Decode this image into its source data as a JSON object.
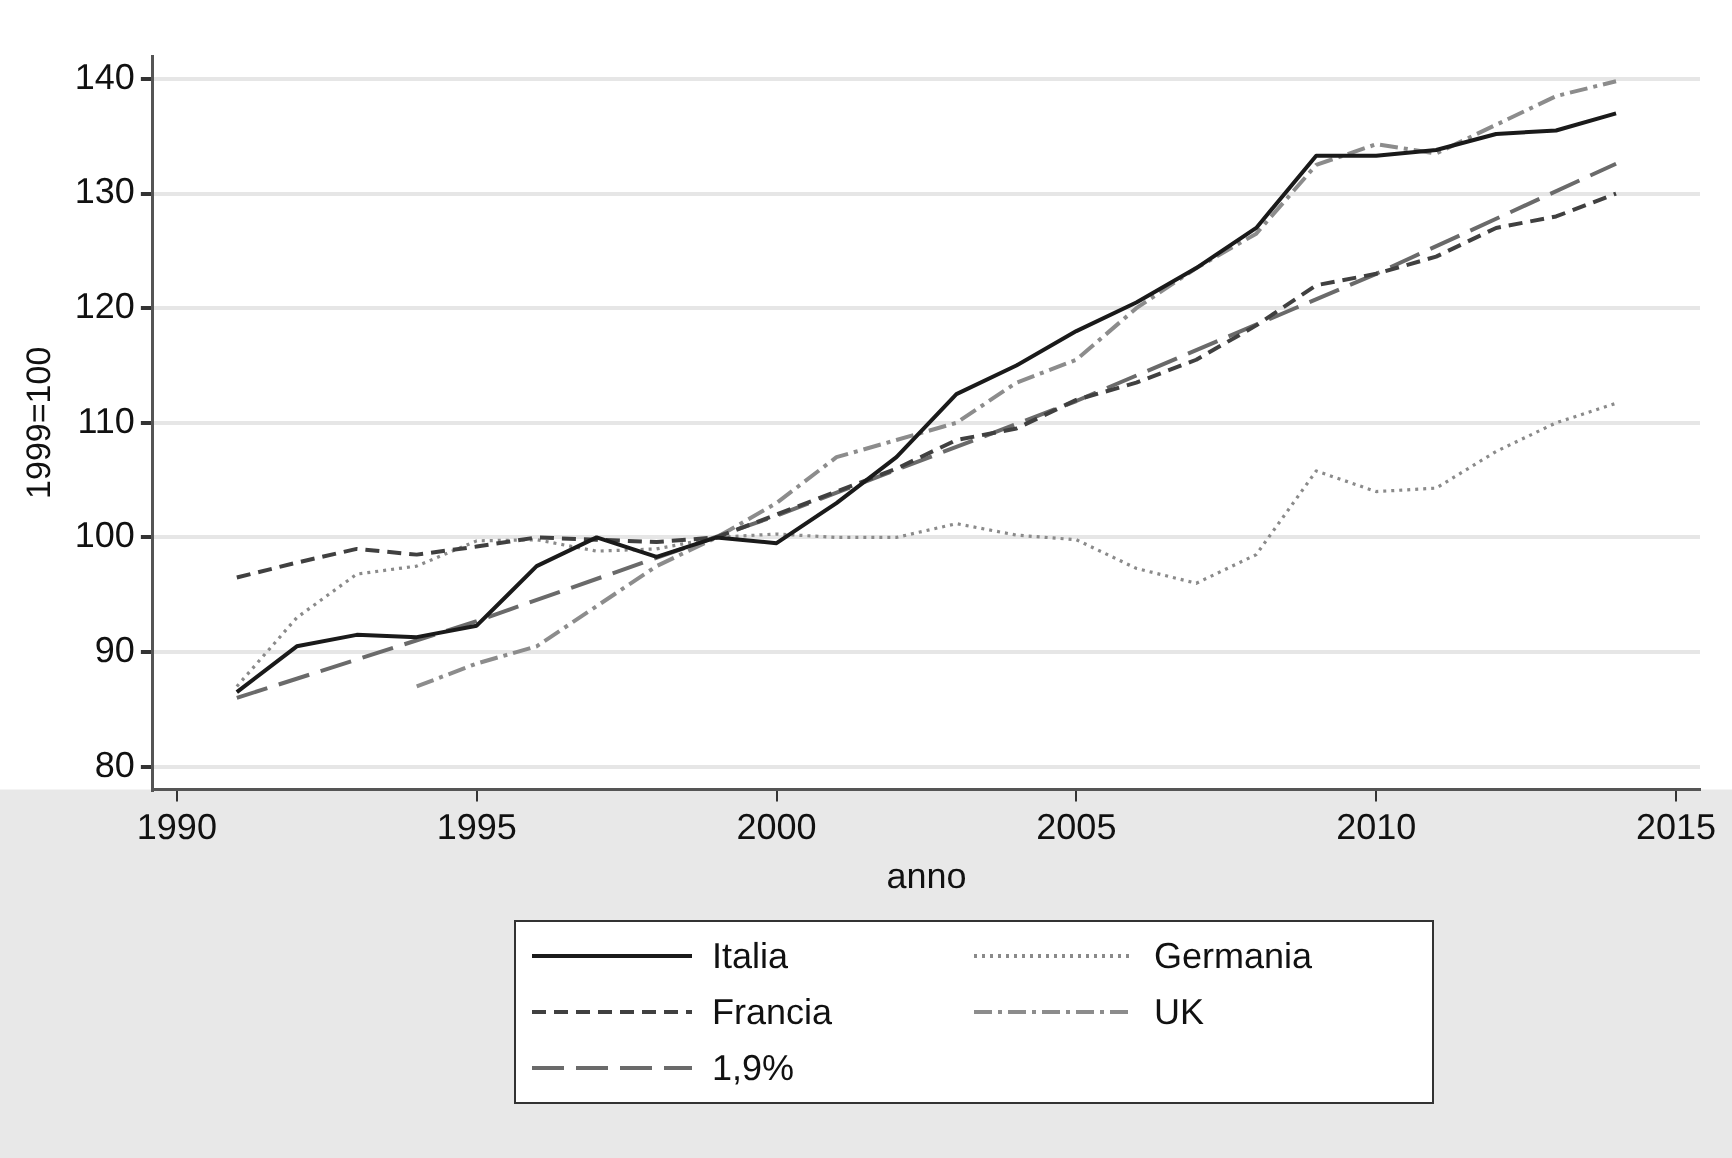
{
  "chart_data": {
    "type": "line",
    "xlabel": "anno",
    "ylabel": "1999=100",
    "x": [
      1991,
      1992,
      1993,
      1994,
      1995,
      1996,
      1997,
      1998,
      1999,
      2000,
      2001,
      2002,
      2003,
      2004,
      2005,
      2006,
      2007,
      2008,
      2009,
      2010,
      2011,
      2012,
      2013,
      2014
    ],
    "series": [
      {
        "name": "Italia",
        "color": "#1a1a1a",
        "line_style": "solid",
        "values": [
          86.5,
          90.5,
          91.5,
          91.3,
          92.3,
          97.5,
          100,
          98.3,
          100,
          99.5,
          103,
          107,
          112.5,
          115,
          118,
          120.5,
          123.5,
          127,
          133.3,
          133.3,
          133.8,
          135.2,
          135.5,
          137
        ]
      },
      {
        "name": "Francia",
        "color": "#404040",
        "line_style": "dashed",
        "values": [
          96.5,
          97.8,
          99,
          98.5,
          99.2,
          100,
          99.8,
          99.6,
          100,
          102,
          104,
          106,
          108.5,
          109.5,
          112,
          113.5,
          115.5,
          118.5,
          122,
          123,
          124.5,
          127,
          128,
          130
        ]
      },
      {
        "name": "1,9%",
        "color": "#6a6a6a",
        "line_style": "longdash",
        "x": [
          1991,
          1995,
          2000,
          2005,
          2010,
          2014
        ],
        "values": [
          86,
          92.7,
          101.9,
          111.9,
          123,
          132.6
        ]
      },
      {
        "name": "Germania",
        "color": "#8a8a8a",
        "line_style": "dotted",
        "values": [
          87,
          93,
          96.8,
          97.5,
          99.7,
          99.8,
          98.8,
          99,
          100,
          100.3,
          100,
          100,
          101.2,
          100.2,
          99.8,
          97.3,
          96,
          98.5,
          105.8,
          104,
          104.3,
          107.5,
          110,
          111.7
        ]
      },
      {
        "name": "UK",
        "color": "#8c8c8c",
        "line_style": "dashdot",
        "values": [
          null,
          null,
          null,
          87,
          89,
          90.5,
          94,
          97.5,
          100,
          103,
          107,
          108.5,
          110,
          113.5,
          115.5,
          120,
          123.5,
          126.5,
          132.5,
          134.3,
          133.5,
          136,
          138.5,
          139.8
        ]
      }
    ],
    "xlim": [
      1989.6,
      2015.4
    ],
    "xticks": [
      1990,
      1995,
      2000,
      2005,
      2010,
      2015
    ],
    "ylim": [
      78,
      142
    ],
    "yticks": [
      80,
      90,
      100,
      110,
      120,
      130,
      140
    ],
    "grid": "y",
    "legend": "bottom"
  }
}
